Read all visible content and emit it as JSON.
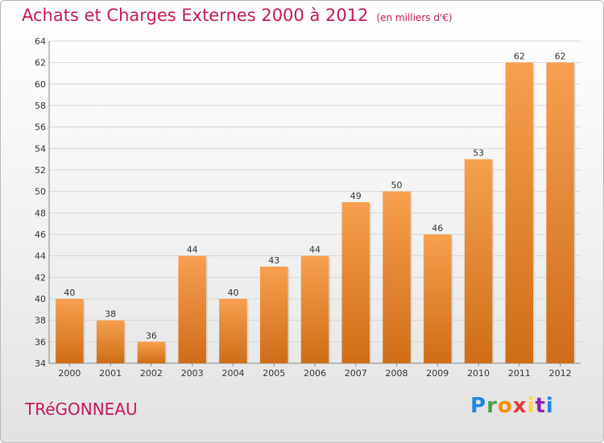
{
  "header": {
    "title": "Achats et Charges Externes 2000 à 2012",
    "unit": "(en milliers d'€)"
  },
  "commune": "TRéGONNEAU",
  "logo": {
    "text": "Proxiti"
  },
  "colors": {
    "bar_light": "#f7a04f",
    "bar_dark": "#cf6d17",
    "title": "#c2185b"
  },
  "chart_data": {
    "type": "bar",
    "title": "Achats et Charges Externes 2000 à 2012",
    "subtitle": "(en milliers d'€)",
    "categories": [
      "2000",
      "2001",
      "2002",
      "2003",
      "2004",
      "2005",
      "2006",
      "2007",
      "2008",
      "2009",
      "2010",
      "2011",
      "2012"
    ],
    "values": [
      40,
      38,
      36,
      44,
      40,
      43,
      44,
      49,
      50,
      46,
      53,
      62,
      62
    ],
    "ylim": [
      34,
      64
    ],
    "yticks": [
      34,
      36,
      38,
      40,
      42,
      44,
      46,
      48,
      50,
      52,
      54,
      56,
      58,
      60,
      62,
      64
    ],
    "grid": true,
    "xlabel": "",
    "ylabel": ""
  }
}
